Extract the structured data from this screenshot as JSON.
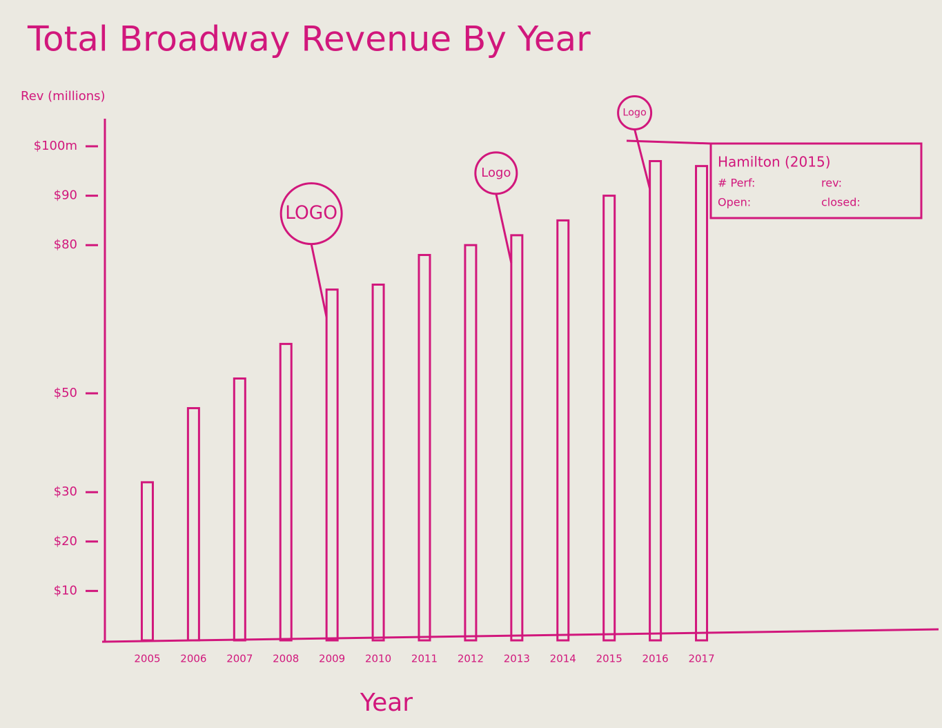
{
  "chart_data": {
    "type": "bar",
    "title": "Total Broadway Revenue By Year",
    "y_label": "Rev (millions)",
    "x_label": "Year",
    "categories": [
      "2005",
      "2006",
      "2007",
      "2008",
      "2009",
      "2010",
      "2011",
      "2012",
      "2013",
      "2014",
      "2015",
      "2016",
      "2017"
    ],
    "values": [
      32,
      47,
      53,
      60,
      71,
      72,
      78,
      80,
      82,
      85,
      90,
      97,
      96
    ],
    "color": "#d1177c",
    "ylim": [
      0,
      100
    ],
    "yticks": [
      {
        "value": 10,
        "label": "$10"
      },
      {
        "value": 20,
        "label": "$20"
      },
      {
        "value": 30,
        "label": "$30"
      },
      {
        "value": 50,
        "label": "$50"
      },
      {
        "value": 80,
        "label": "$80"
      },
      {
        "value": 90,
        "label": "$90"
      },
      {
        "value": 100,
        "label": "$100m"
      }
    ],
    "grid": false,
    "annotations": [
      "LOGO",
      "Logo",
      "Logo"
    ],
    "tooltip": {
      "title": "Hamilton (2015)",
      "fields": [
        "# Perf:",
        "rev:",
        "Open:",
        "closed:"
      ]
    }
  }
}
